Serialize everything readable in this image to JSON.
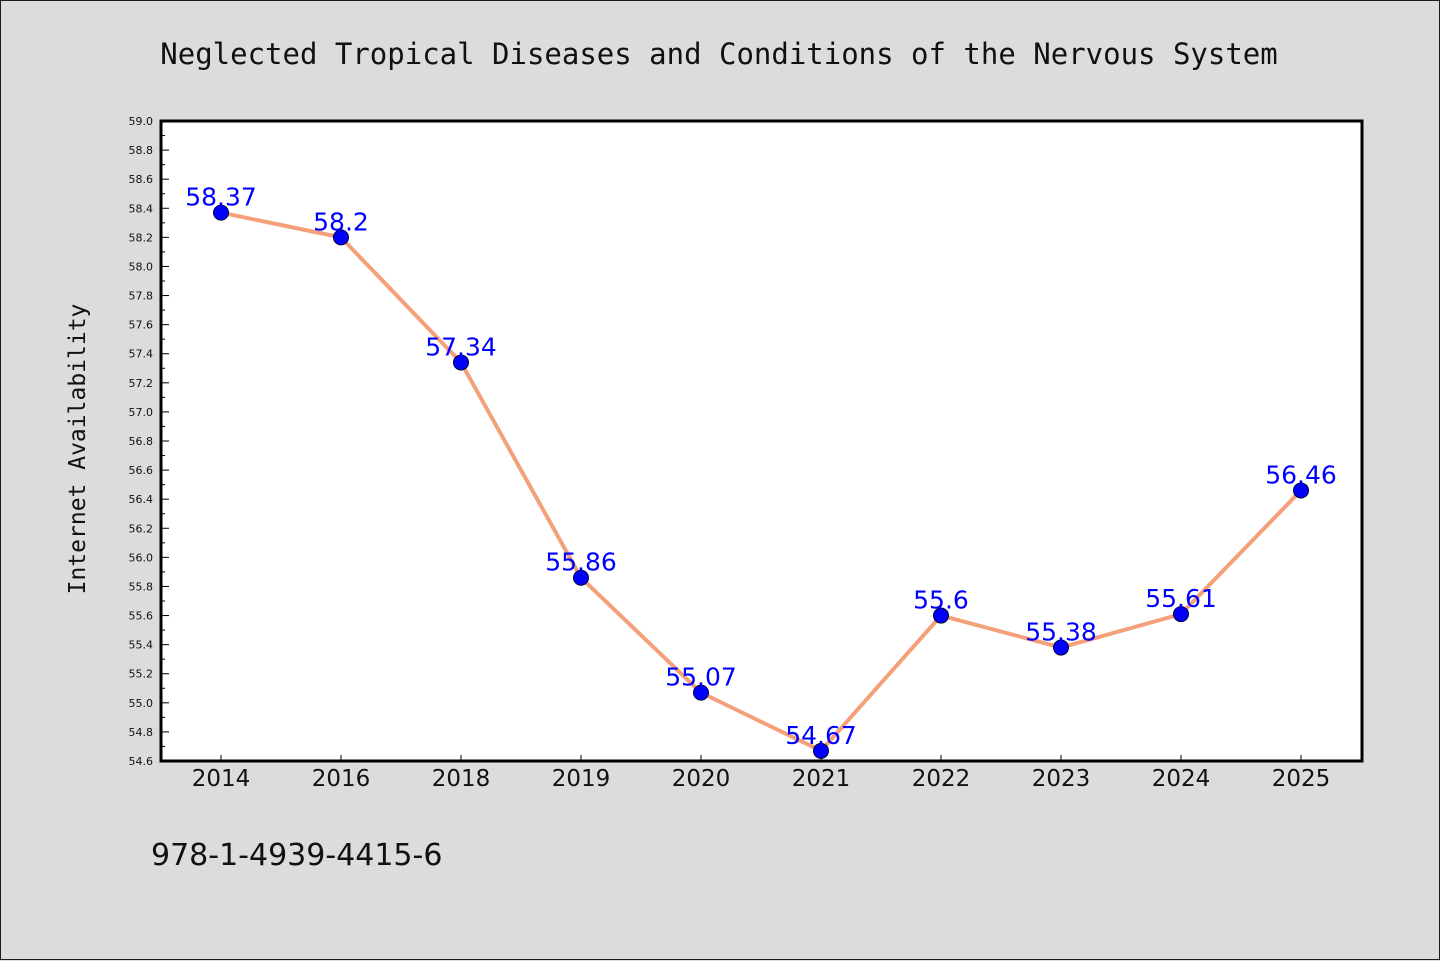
{
  "chart_data": {
    "type": "line",
    "title": "Neglected Tropical Diseases and Conditions of the Nervous System",
    "xlabel": "",
    "ylabel": "Internet Availability",
    "categories": [
      "2014",
      "2016",
      "2018",
      "2019",
      "2020",
      "2021",
      "2022",
      "2023",
      "2024",
      "2025"
    ],
    "series": [
      {
        "values": [
          58.37,
          58.2,
          57.34,
          55.86,
          55.07,
          54.67,
          55.6,
          55.38,
          55.61,
          56.46
        ],
        "labels": [
          "58.37",
          "58.2",
          "57.34",
          "55.86",
          "55.07",
          "54.67",
          "55.6",
          "55.38",
          "55.61",
          "56.46"
        ],
        "line_color": "#f4a07a",
        "marker_color": "#0000ff"
      }
    ],
    "ylim": [
      54.6,
      59.0
    ],
    "y_ticks": [
      "54.6",
      "54.8",
      "55.0",
      "55.2",
      "55.4",
      "55.6",
      "55.8",
      "56.0",
      "56.2",
      "56.4",
      "56.6",
      "56.8",
      "57.0",
      "57.2",
      "57.4",
      "57.6",
      "57.8",
      "58.0",
      "58.2",
      "58.4",
      "58.6",
      "58.8",
      "59.0"
    ],
    "grid": false,
    "legend": "none"
  },
  "footer": {
    "isbn": "978-1-4939-4415-6"
  },
  "colors": {
    "background": "#dcdcdc",
    "plot_area": "#ffffff",
    "line": "#f4a07a",
    "marker": "#0000ff",
    "data_label": "#0000ff"
  }
}
